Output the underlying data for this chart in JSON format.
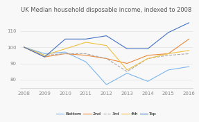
{
  "title": "UK Median household disposable income, indexed to 2008",
  "years": [
    2008,
    2009,
    2010,
    2011,
    2012,
    2013,
    2014,
    2015,
    2016
  ],
  "series": {
    "Bottom": [
      100,
      96,
      97,
      91,
      77,
      84,
      79,
      86,
      88
    ],
    "2nd": [
      100,
      94,
      96,
      95,
      93,
      90,
      95,
      96,
      105
    ],
    "3rd": [
      100,
      95,
      96,
      96,
      93,
      85,
      93,
      95,
      96
    ],
    "4th": [
      100,
      95,
      99,
      103,
      101,
      86,
      93,
      96,
      98
    ],
    "Top": [
      100,
      94,
      105,
      105,
      107,
      99,
      99,
      109,
      115
    ]
  },
  "colors": {
    "Bottom": "#7cb5ec",
    "2nd": "#e8883a",
    "3rd": "#aaaaaa",
    "4th": "#f0c040",
    "Top": "#4472c4"
  },
  "line_styles": {
    "Bottom": "-",
    "2nd": "-",
    "3rd": "--",
    "4th": "-",
    "Top": "-"
  },
  "ylim": [
    75,
    120
  ],
  "yticks": [
    80,
    90,
    100,
    110
  ],
  "background_color": "#f8f8f8",
  "title_fontsize": 6,
  "tick_fontsize": 5,
  "legend_fontsize": 4.5
}
